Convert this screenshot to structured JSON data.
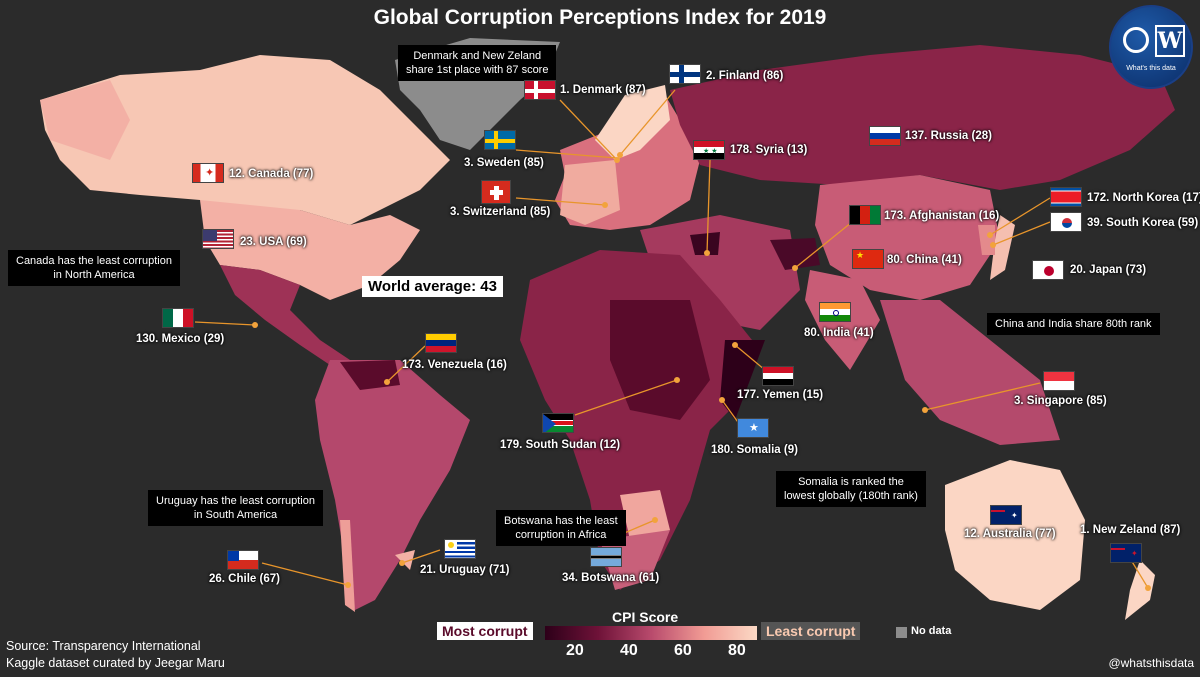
{
  "title": "Global Corruption Perceptions Index for 2019",
  "world_average": "World average: 43",
  "notes": {
    "denmark_nz": [
      "Denmark and New Zeland",
      "share 1st place with 87 score"
    ],
    "canada": [
      "Canada has the least corruption",
      "in North America"
    ],
    "china_india": [
      "China and India share 80th rank"
    ],
    "uruguay": [
      "Uruguay has the least corruption",
      "in South America"
    ],
    "botswana": [
      "Botswana has the least",
      "corruption in Africa"
    ],
    "somalia": [
      "Somalia is ranked the",
      "lowest globally (180th rank)"
    ]
  },
  "countries": {
    "denmark": "1. Denmark (87)",
    "finland": "2. Finland (86)",
    "sweden": "3. Sweden (85)",
    "switzerland": "3. Switzerland (85)",
    "syria": "178. Syria (13)",
    "russia": "137. Russia (28)",
    "canada": "12. Canada (77)",
    "usa": "23. USA (69)",
    "mexico": "130. Mexico (29)",
    "venezuela": "173. Venezuela (16)",
    "afghanistan": "173. Afghanistan (16)",
    "china": "80. China (41)",
    "india": "80. India (41)",
    "north_korea": "172. North Korea (17)",
    "south_korea": "39. South Korea (59)",
    "japan": "20. Japan (73)",
    "yemen": "177. Yemen (15)",
    "south_sudan": "179. South Sudan (12)",
    "somalia": "180. Somalia (9)",
    "singapore": "3. Singapore (85)",
    "australia": "12. Australia (77)",
    "new_zealand": "1. New Zeland (87)",
    "chile": "26. Chile (67)",
    "uruguay": "21. Uruguay (71)",
    "botswana": "34. Botswana (61)"
  },
  "legend": {
    "title": "CPI Score",
    "most": "Most corrupt",
    "least": "Least corrupt",
    "ticks": [
      "20",
      "40",
      "60",
      "80"
    ],
    "no_data": "No data"
  },
  "source": [
    "Source: Transparency International",
    "Kaggle dataset curated by Jeegar Maru"
  ],
  "handle": "@whatsthisdata",
  "logo_text": "What's this data",
  "colors": {
    "background": "#2b2b2b",
    "most_corrupt": "#2d0019",
    "least_corrupt": "#fbd9c5",
    "no_data": "#8c8c8c",
    "leader_line": "#e8952b"
  }
}
